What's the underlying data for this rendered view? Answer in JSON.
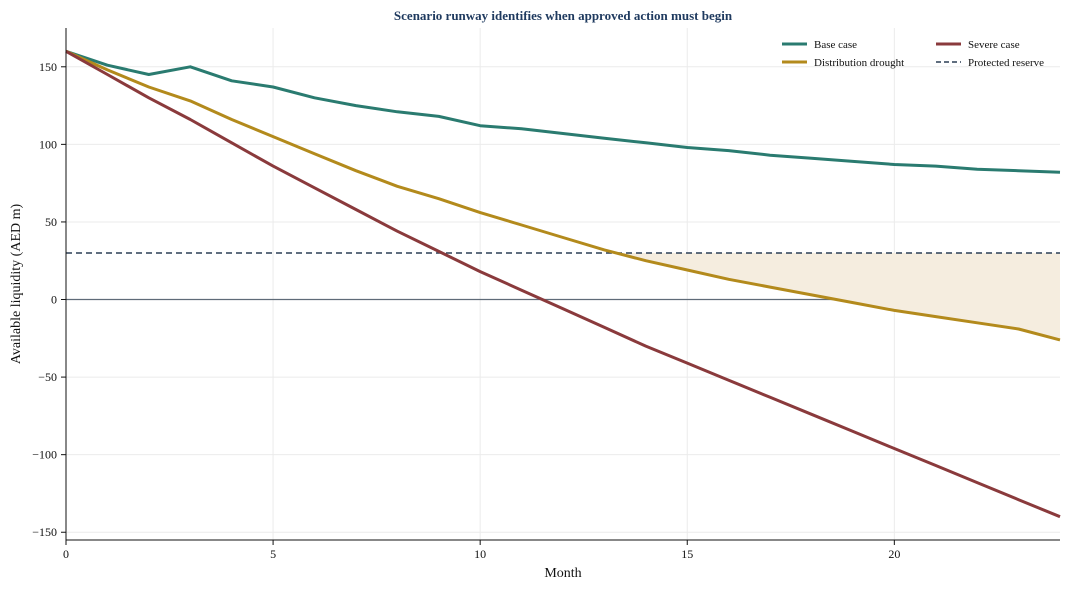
{
  "chart_data": {
    "type": "line",
    "title": "Scenario runway identifies when approved action must begin",
    "xlabel": "Month",
    "ylabel": "Available liquidity (AED m)",
    "xlim": [
      0,
      24
    ],
    "ylim": [
      -155,
      175
    ],
    "x_ticks": [
      0,
      5,
      10,
      15,
      20
    ],
    "y_ticks": [
      -150,
      -100,
      -50,
      0,
      50,
      100,
      150
    ],
    "grid": true,
    "legend_position": "top-right",
    "x": [
      0,
      1,
      2,
      3,
      4,
      5,
      6,
      7,
      8,
      9,
      10,
      11,
      12,
      13,
      14,
      15,
      16,
      17,
      18,
      19,
      20,
      21,
      22,
      23,
      24
    ],
    "series": [
      {
        "name": "Base case",
        "color": "#2a7b70",
        "style": "solid",
        "values": [
          160,
          151,
          145,
          150,
          141,
          137,
          130,
          125,
          121,
          118,
          112,
          110,
          107,
          104,
          101,
          98,
          96,
          93,
          91,
          89,
          87,
          86,
          84,
          83,
          82
        ]
      },
      {
        "name": "Distribution drought",
        "color": "#b38a1c",
        "style": "solid",
        "values": [
          160,
          148,
          137,
          128,
          116,
          105,
          94,
          83,
          73,
          65,
          56,
          48,
          40,
          32,
          25,
          19,
          13,
          8,
          3,
          -2,
          -7,
          -11,
          -15,
          -19,
          -26
        ]
      },
      {
        "name": "Severe case",
        "color": "#8a3a3c",
        "style": "solid",
        "values": [
          160,
          145,
          130,
          116,
          101,
          86,
          72,
          58,
          44,
          31,
          18,
          6,
          -6,
          -18,
          -30,
          -41,
          -52,
          -63,
          -74,
          -85,
          -96,
          -107,
          -118,
          -129,
          -140
        ]
      },
      {
        "name": "Protected reserve",
        "color": "#2c3e55",
        "style": "dashed",
        "values": [
          30,
          30,
          30,
          30,
          30,
          30,
          30,
          30,
          30,
          30,
          30,
          30,
          30,
          30,
          30,
          30,
          30,
          30,
          30,
          30,
          30,
          30,
          30,
          30,
          30
        ]
      }
    ],
    "shaded_region": {
      "between": [
        "Protected reserve",
        "Distribution drought"
      ],
      "where": "Distribution drought below Protected reserve",
      "color": "#f5eddf"
    },
    "zero_line_color": "#5f6b78",
    "title_color": "#1f3a5f"
  }
}
